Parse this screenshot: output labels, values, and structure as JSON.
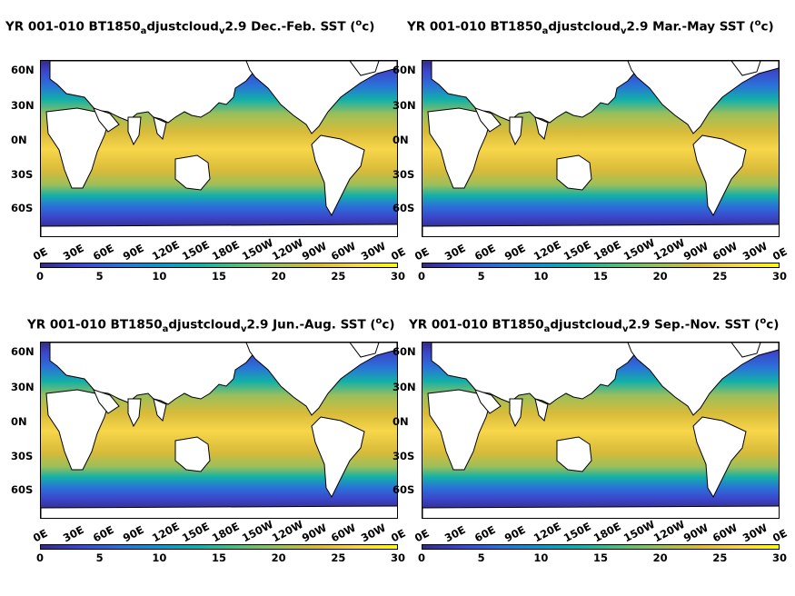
{
  "colorbar": {
    "ticks": [
      "0",
      "5",
      "10",
      "15",
      "20",
      "25",
      "30"
    ],
    "colors": [
      "#352a87",
      "#3b47cc",
      "#2a72d8",
      "#0f95c9",
      "#13b0a8",
      "#54bd7e",
      "#9bbf5a",
      "#d8bb3a",
      "#f7d64a",
      "#f9fb0e"
    ]
  },
  "land_color": "#ffffff",
  "lat_labels": [
    "60N",
    "30N",
    "0N",
    "30S",
    "60S"
  ],
  "lon_labels": [
    "0E",
    "30E",
    "60E",
    "90E",
    "120E",
    "150E",
    "180E",
    "150W",
    "120W",
    "90W",
    "60W",
    "30W",
    "0E"
  ],
  "panels": [
    {
      "prefix": "YR 001-010 BT1850",
      "sub1": "a",
      "mid": "djustcloud",
      "sub2": "v",
      "suffix": "2.9 Dec.-Feb. SST (",
      "sup": "o",
      "end": "c)"
    },
    {
      "prefix": "YR 001-010 BT1850",
      "sub1": "a",
      "mid": "djustcloud",
      "sub2": "v",
      "suffix": "2.9 Mar.-May SST (",
      "sup": "o",
      "end": "c)"
    },
    {
      "prefix": "YR 001-010 BT1850",
      "sub1": "a",
      "mid": "djustcloud",
      "sub2": "v",
      "suffix": "2.9 Jun.-Aug. SST (",
      "sup": "o",
      "end": "c)"
    },
    {
      "prefix": "YR 001-010 BT1850",
      "sub1": "a",
      "mid": "djustcloud",
      "sub2": "v",
      "suffix": "2.9 Sep.-Nov. SST (",
      "sup": "o",
      "end": "c)"
    }
  ]
}
